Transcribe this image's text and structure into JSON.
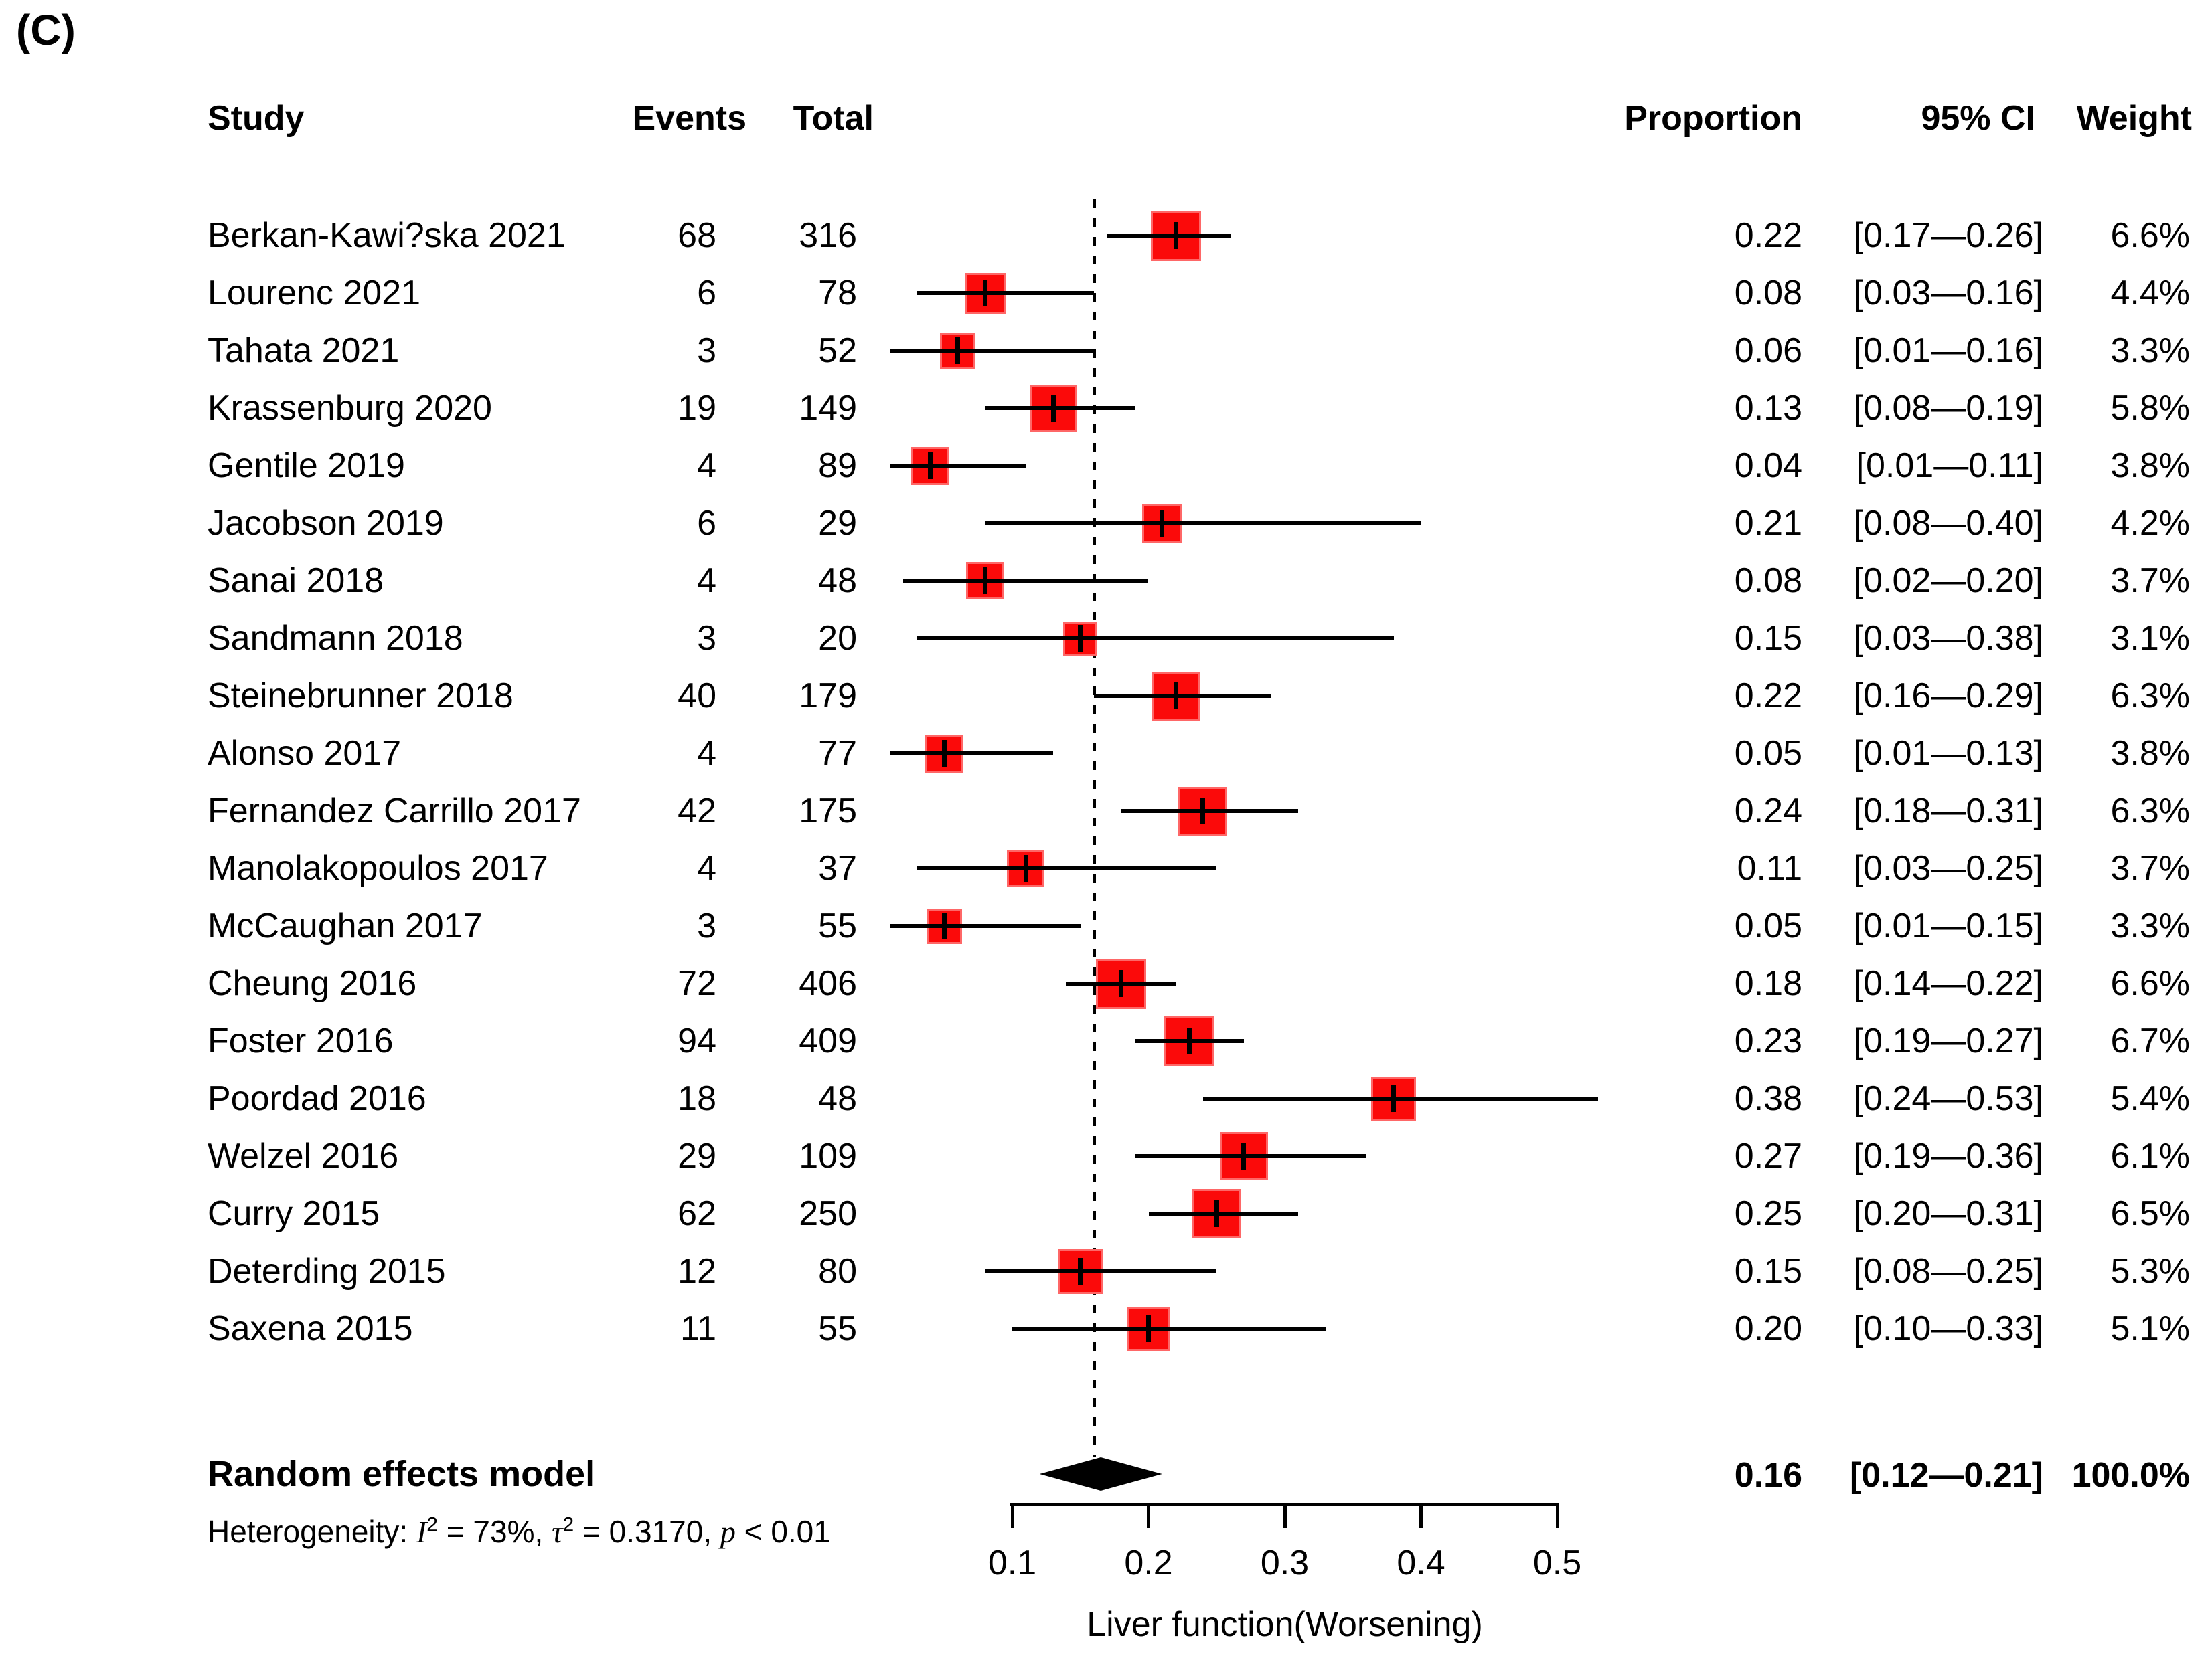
{
  "panel_label": "(C)",
  "columns": {
    "study": "Study",
    "events": "Events",
    "total": "Total",
    "proportion": "Proportion",
    "ci": "95% CI",
    "weight": "Weight"
  },
  "chart_data": {
    "type": "forest",
    "xlabel": "Liver function(Worsening)",
    "x_ticks": [
      "0.1",
      "0.2",
      "0.3",
      "0.4",
      "0.5"
    ],
    "xlim": [
      0.1,
      0.5
    ],
    "reference_line": 0.16,
    "marker_color": "#FB0A0A",
    "ci_color": "#000000",
    "studies": [
      {
        "name": "Berkan-Kawi?ska 2021",
        "events": "68",
        "total": "316",
        "proportion": "0.22",
        "ci": "[0.17—0.26]",
        "weight": "6.6%",
        "p": 0.22,
        "lo": 0.17,
        "hi": 0.26,
        "w": 6.6
      },
      {
        "name": "Lourenc 2021",
        "events": "6",
        "total": "78",
        "proportion": "0.08",
        "ci": "[0.03—0.16]",
        "weight": "4.4%",
        "p": 0.08,
        "lo": 0.03,
        "hi": 0.16,
        "w": 4.4
      },
      {
        "name": "Tahata 2021",
        "events": "3",
        "total": "52",
        "proportion": "0.06",
        "ci": "[0.01—0.16]",
        "weight": "3.3%",
        "p": 0.06,
        "lo": 0.01,
        "hi": 0.16,
        "w": 3.3
      },
      {
        "name": "Krassenburg 2020",
        "events": "19",
        "total": "149",
        "proportion": "0.13",
        "ci": "[0.08—0.19]",
        "weight": "5.8%",
        "p": 0.13,
        "lo": 0.08,
        "hi": 0.19,
        "w": 5.8
      },
      {
        "name": "Gentile 2019",
        "events": "4",
        "total": "89",
        "proportion": "0.04",
        "ci": "[0.01—0.11]",
        "weight": "3.8%",
        "p": 0.04,
        "lo": 0.01,
        "hi": 0.11,
        "w": 3.8
      },
      {
        "name": "Jacobson 2019",
        "events": "6",
        "total": "29",
        "proportion": "0.21",
        "ci": "[0.08—0.40]",
        "weight": "4.2%",
        "p": 0.21,
        "lo": 0.08,
        "hi": 0.4,
        "w": 4.2
      },
      {
        "name": "Sanai 2018",
        "events": "4",
        "total": "48",
        "proportion": "0.08",
        "ci": "[0.02—0.20]",
        "weight": "3.7%",
        "p": 0.08,
        "lo": 0.02,
        "hi": 0.2,
        "w": 3.7
      },
      {
        "name": "Sandmann 2018",
        "events": "3",
        "total": "20",
        "proportion": "0.15",
        "ci": "[0.03—0.38]",
        "weight": "3.1%",
        "p": 0.15,
        "lo": 0.03,
        "hi": 0.38,
        "w": 3.1
      },
      {
        "name": "Steinebrunner 2018",
        "events": "40",
        "total": "179",
        "proportion": "0.22",
        "ci": "[0.16—0.29]",
        "weight": "6.3%",
        "p": 0.22,
        "lo": 0.16,
        "hi": 0.29,
        "w": 6.3
      },
      {
        "name": "Alonso 2017",
        "events": "4",
        "total": "77",
        "proportion": "0.05",
        "ci": "[0.01—0.13]",
        "weight": "3.8%",
        "p": 0.05,
        "lo": 0.01,
        "hi": 0.13,
        "w": 3.8
      },
      {
        "name": "Fernandez Carrillo 2017",
        "events": "42",
        "total": "175",
        "proportion": "0.24",
        "ci": "[0.18—0.31]",
        "weight": "6.3%",
        "p": 0.24,
        "lo": 0.18,
        "hi": 0.31,
        "w": 6.3
      },
      {
        "name": "Manolakopoulos 2017",
        "events": "4",
        "total": "37",
        "proportion": "0.11",
        "ci": "[0.03—0.25]",
        "weight": "3.7%",
        "p": 0.11,
        "lo": 0.03,
        "hi": 0.25,
        "w": 3.7
      },
      {
        "name": "McCaughan 2017",
        "events": "3",
        "total": "55",
        "proportion": "0.05",
        "ci": "[0.01—0.15]",
        "weight": "3.3%",
        "p": 0.05,
        "lo": 0.01,
        "hi": 0.15,
        "w": 3.3
      },
      {
        "name": "Cheung 2016",
        "events": "72",
        "total": "406",
        "proportion": "0.18",
        "ci": "[0.14—0.22]",
        "weight": "6.6%",
        "p": 0.18,
        "lo": 0.14,
        "hi": 0.22,
        "w": 6.6
      },
      {
        "name": "Foster 2016",
        "events": "94",
        "total": "409",
        "proportion": "0.23",
        "ci": "[0.19—0.27]",
        "weight": "6.7%",
        "p": 0.23,
        "lo": 0.19,
        "hi": 0.27,
        "w": 6.7
      },
      {
        "name": "Poordad 2016",
        "events": "18",
        "total": "48",
        "proportion": "0.38",
        "ci": "[0.24—0.53]",
        "weight": "5.4%",
        "p": 0.38,
        "lo": 0.24,
        "hi": 0.53,
        "w": 5.4
      },
      {
        "name": "Welzel 2016",
        "events": "29",
        "total": "109",
        "proportion": "0.27",
        "ci": "[0.19—0.36]",
        "weight": "6.1%",
        "p": 0.27,
        "lo": 0.19,
        "hi": 0.36,
        "w": 6.1
      },
      {
        "name": "Curry 2015",
        "events": "62",
        "total": "250",
        "proportion": "0.25",
        "ci": "[0.20—0.31]",
        "weight": "6.5%",
        "p": 0.25,
        "lo": 0.2,
        "hi": 0.31,
        "w": 6.5
      },
      {
        "name": "Deterding 2015",
        "events": "12",
        "total": "80",
        "proportion": "0.15",
        "ci": "[0.08—0.25]",
        "weight": "5.3%",
        "p": 0.15,
        "lo": 0.08,
        "hi": 0.25,
        "w": 5.3
      },
      {
        "name": "Saxena 2015",
        "events": "11",
        "total": "55",
        "proportion": "0.20",
        "ci": "[0.10—0.33]",
        "weight": "5.1%",
        "p": 0.2,
        "lo": 0.1,
        "hi": 0.33,
        "w": 5.1
      }
    ],
    "summary": {
      "label": "Random effects model",
      "proportion_text": "0.16",
      "ci_text": "[0.12—0.21]",
      "weight_text": "100.0%",
      "p": 0.16,
      "lo": 0.12,
      "hi": 0.21
    },
    "heterogeneity": {
      "prefix": "Heterogeneity: ",
      "i_sym": "I",
      "i_sup": "2",
      "seg1": " = 73%, ",
      "tau_sym": "τ",
      "tau_sup": "2",
      "seg2": " = 0.3170, ",
      "p_sym": "p",
      "seg3": " < 0.01"
    }
  }
}
